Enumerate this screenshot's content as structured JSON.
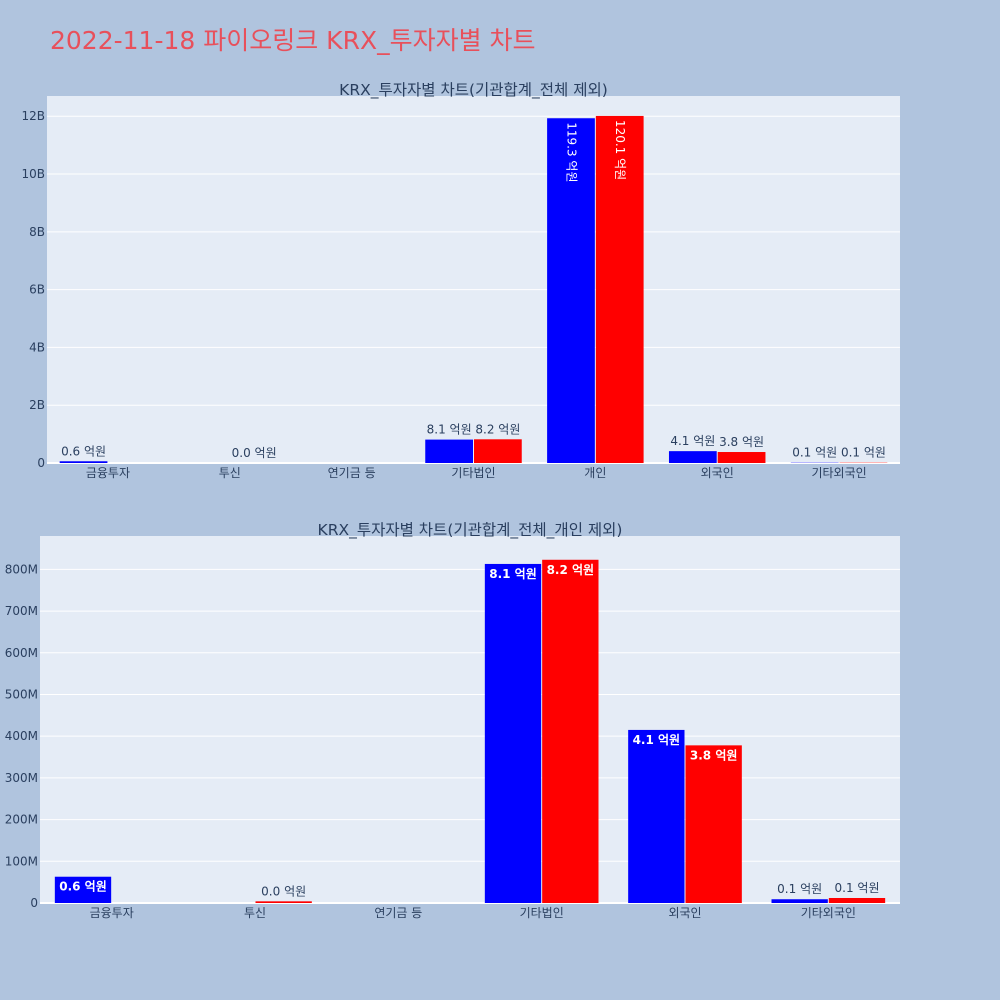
{
  "page_title": "2022-11-18 파이오링크 KRX_투자자별 차트",
  "colors": {
    "background": "#b0c4de",
    "plot_bg": "#e5ecf6",
    "grid": "#ffffff",
    "title": "#e8505b",
    "subtitle": "#2a3f5f",
    "tick": "#2a3f5f",
    "sell": "#0000ff",
    "buy": "#ff0000"
  },
  "chart_data": [
    {
      "type": "bar",
      "title": "KRX_투자자별 차트(기관합계_전체 제외)",
      "categories": [
        "금융투자",
        "투신",
        "연기금 등",
        "기타법인",
        "개인",
        "외국인",
        "기타외국인"
      ],
      "ylim": [
        0,
        12700000000
      ],
      "yticks": [
        0,
        2000000000,
        4000000000,
        6000000000,
        8000000000,
        10000000000,
        12000000000
      ],
      "ytick_labels": [
        "0",
        "2B",
        "4B",
        "6B",
        "8B",
        "10B",
        "12B"
      ],
      "series": [
        {
          "values": [
            60000000,
            0,
            0,
            810000000,
            11930000000,
            410000000,
            10000000
          ],
          "labels": [
            "0.6 억원",
            "",
            "",
            "8.1 억원",
            "119.3 억원",
            "4.1 억원",
            "0.1 억원"
          ]
        },
        {
          "values": [
            0,
            0,
            0,
            820000000,
            12010000000,
            380000000,
            10000000
          ],
          "labels": [
            "",
            "0.0 억원",
            "",
            "8.2 억원",
            "120.1 억원",
            "3.8 억원",
            "0.1 억원"
          ]
        }
      ],
      "grid": true
    },
    {
      "type": "bar",
      "title": "KRX_투자자별 차트(기관합계_전체_개인 제외)",
      "categories": [
        "금융투자",
        "투신",
        "연기금 등",
        "기타법인",
        "외국인",
        "기타외국인"
      ],
      "ylim": [
        0,
        880000000
      ],
      "yticks": [
        0,
        100000000,
        200000000,
        300000000,
        400000000,
        500000000,
        600000000,
        700000000,
        800000000
      ],
      "ytick_labels": [
        "0",
        "100M",
        "200M",
        "300M",
        "400M",
        "500M",
        "600M",
        "700M",
        "800M"
      ],
      "series": [
        {
          "values": [
            63000000,
            0,
            0,
            813000000,
            415000000,
            9000000
          ],
          "labels": [
            "0.6 억원",
            "",
            "",
            "8.1 억원",
            "4.1 억원",
            "0.1 억원"
          ]
        },
        {
          "values": [
            0,
            4000000,
            0,
            823000000,
            378000000,
            12000000
          ],
          "labels": [
            "",
            "0.0 억원",
            "",
            "8.2 억원",
            "3.8 억원",
            "0.1 억원"
          ]
        }
      ],
      "grid": true
    }
  ]
}
